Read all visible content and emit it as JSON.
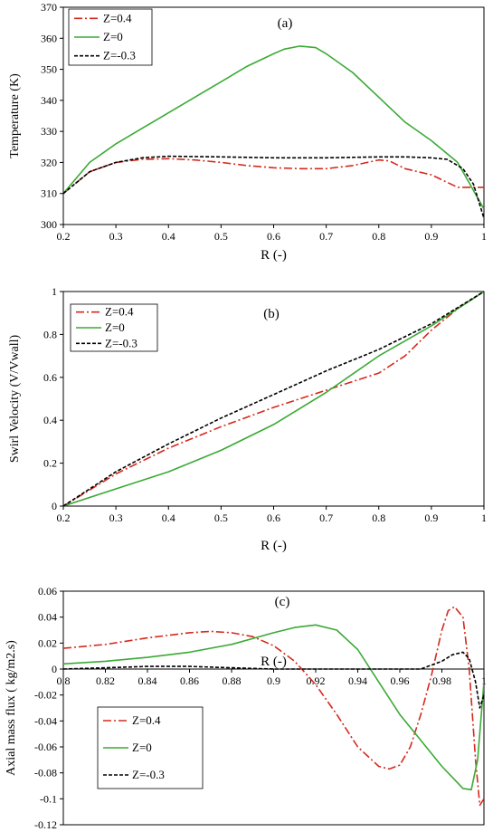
{
  "chart_data": [
    {
      "type": "line",
      "panel_label": "(a)",
      "xlabel": "R (-)",
      "ylabel": "Temperature (K)",
      "xlim": [
        0.2,
        1.0
      ],
      "ylim": [
        300,
        370
      ],
      "xticks": [
        "0.2",
        "0.3",
        "0.4",
        "0.5",
        "0.6",
        "0.7",
        "0.8",
        "0.9",
        "1"
      ],
      "yticks": [
        "300",
        "310",
        "320",
        "330",
        "340",
        "350",
        "360",
        "370"
      ],
      "grid": false,
      "legend_position": "top-left",
      "series": [
        {
          "name": "Z=0.4",
          "color": "#d42a1c",
          "style": "dashdot",
          "x": [
            0.2,
            0.25,
            0.3,
            0.35,
            0.4,
            0.45,
            0.5,
            0.55,
            0.6,
            0.65,
            0.7,
            0.75,
            0.8,
            0.82,
            0.85,
            0.9,
            0.95,
            1.0
          ],
          "y": [
            310,
            317,
            320,
            321,
            321.2,
            320.8,
            320,
            319,
            318.3,
            318,
            318,
            319,
            320.8,
            320.5,
            318,
            316,
            312,
            312
          ]
        },
        {
          "name": "Z=0",
          "color": "#3aaa35",
          "style": "solid",
          "x": [
            0.2,
            0.25,
            0.3,
            0.35,
            0.4,
            0.45,
            0.5,
            0.55,
            0.6,
            0.62,
            0.65,
            0.68,
            0.7,
            0.75,
            0.8,
            0.85,
            0.9,
            0.95,
            1.0
          ],
          "y": [
            310,
            320,
            326,
            331,
            336,
            341,
            346,
            351,
            355,
            356.5,
            357.5,
            357,
            355,
            349,
            341,
            333,
            327,
            320,
            305
          ]
        },
        {
          "name": "Z=-0.3",
          "color": "#000000",
          "style": "dashed",
          "x": [
            0.2,
            0.25,
            0.3,
            0.35,
            0.4,
            0.5,
            0.6,
            0.7,
            0.8,
            0.85,
            0.9,
            0.93,
            0.96,
            0.98,
            1.0
          ],
          "y": [
            310,
            317,
            320,
            321.5,
            322,
            321.8,
            321.5,
            321.5,
            321.8,
            321.8,
            321.5,
            321,
            318,
            313,
            302
          ]
        }
      ]
    },
    {
      "type": "line",
      "panel_label": "(b)",
      "xlabel": "R (-)",
      "ylabel": "Swirl Velocity (V/Vwall)",
      "xlim": [
        0.2,
        1.0
      ],
      "ylim": [
        0,
        1
      ],
      "xticks": [
        "0.2",
        "0.3",
        "0.4",
        "0.5",
        "0.6",
        "0.7",
        "0.8",
        "0.9",
        "1"
      ],
      "yticks": [
        "0",
        "0.2",
        "0.4",
        "0.6",
        "0.8",
        "1"
      ],
      "grid": false,
      "legend_position": "top-left",
      "series": [
        {
          "name": "Z=0.4",
          "color": "#d42a1c",
          "style": "dashdot",
          "x": [
            0.2,
            0.3,
            0.4,
            0.5,
            0.6,
            0.7,
            0.75,
            0.8,
            0.85,
            0.9,
            0.95,
            1.0
          ],
          "y": [
            0,
            0.15,
            0.27,
            0.37,
            0.46,
            0.54,
            0.58,
            0.62,
            0.7,
            0.82,
            0.92,
            1.0
          ]
        },
        {
          "name": "Z=0",
          "color": "#3aaa35",
          "style": "solid",
          "x": [
            0.2,
            0.3,
            0.4,
            0.5,
            0.6,
            0.7,
            0.8,
            0.9,
            1.0
          ],
          "y": [
            0,
            0.08,
            0.16,
            0.26,
            0.38,
            0.53,
            0.7,
            0.84,
            1.0
          ]
        },
        {
          "name": "Z=-0.3",
          "color": "#000000",
          "style": "dashed",
          "x": [
            0.2,
            0.3,
            0.4,
            0.5,
            0.6,
            0.7,
            0.8,
            0.9,
            1.0
          ],
          "y": [
            0,
            0.16,
            0.29,
            0.41,
            0.52,
            0.63,
            0.73,
            0.85,
            1.0
          ]
        }
      ]
    },
    {
      "type": "line",
      "panel_label": "(c)",
      "xlabel": "R (-)",
      "ylabel": "Axial mass flux ( kg/m2.s)",
      "xlim": [
        0.8,
        1.0
      ],
      "ylim": [
        -0.12,
        0.06
      ],
      "xticks": [
        "0.8",
        "0.82",
        "0.84",
        "0.86",
        "0.88",
        "0.9",
        "0.92",
        "0.94",
        "0.96",
        "0.98",
        "1"
      ],
      "yticks": [
        "-0.12",
        "-0.1",
        "-0.08",
        "-0.06",
        "-0.04",
        "-0.02",
        "0",
        "0.02",
        "0.04",
        "0.06"
      ],
      "grid": false,
      "legend_position": "bottom-left",
      "series": [
        {
          "name": "Z=0.4",
          "color": "#d42a1c",
          "style": "dashdot",
          "x": [
            0.8,
            0.82,
            0.84,
            0.86,
            0.87,
            0.88,
            0.89,
            0.9,
            0.91,
            0.92,
            0.93,
            0.94,
            0.95,
            0.955,
            0.96,
            0.965,
            0.97,
            0.975,
            0.98,
            0.983,
            0.986,
            0.99,
            0.993,
            0.996,
            0.998,
            1.0
          ],
          "y": [
            0.016,
            0.019,
            0.024,
            0.028,
            0.029,
            0.028,
            0.025,
            0.018,
            0.006,
            -0.012,
            -0.035,
            -0.06,
            -0.075,
            -0.077,
            -0.074,
            -0.06,
            -0.035,
            -0.005,
            0.03,
            0.045,
            0.048,
            0.04,
            0.0,
            -0.07,
            -0.105,
            -0.1
          ]
        },
        {
          "name": "Z=0",
          "color": "#3aaa35",
          "style": "solid",
          "x": [
            0.8,
            0.82,
            0.84,
            0.86,
            0.88,
            0.9,
            0.91,
            0.92,
            0.93,
            0.94,
            0.95,
            0.96,
            0.97,
            0.98,
            0.99,
            0.994,
            0.997,
            1.0
          ],
          "y": [
            0.004,
            0.006,
            0.009,
            0.013,
            0.019,
            0.028,
            0.032,
            0.034,
            0.03,
            0.015,
            -0.01,
            -0.035,
            -0.055,
            -0.075,
            -0.092,
            -0.093,
            -0.07,
            -0.01
          ]
        },
        {
          "name": "Z=-0.3",
          "color": "#000000",
          "style": "dashed",
          "x": [
            0.8,
            0.82,
            0.84,
            0.86,
            0.88,
            0.9,
            0.92,
            0.94,
            0.96,
            0.97,
            0.98,
            0.985,
            0.99,
            0.993,
            0.996,
            0.998,
            1.0
          ],
          "y": [
            0.0,
            0.001,
            0.002,
            0.002,
            0.001,
            0.0,
            0.0,
            0.0,
            0.0,
            0.0,
            0.006,
            0.011,
            0.013,
            0.008,
            -0.01,
            -0.03,
            -0.02
          ]
        }
      ]
    }
  ]
}
